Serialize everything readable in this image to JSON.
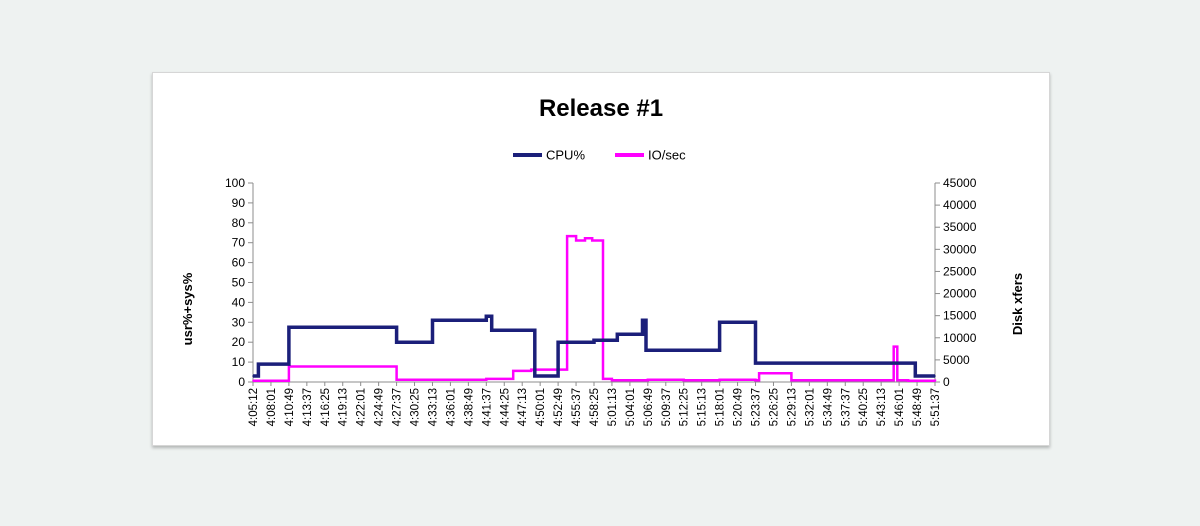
{
  "chart_data": {
    "type": "line",
    "title": "Release #1",
    "ylabel": "usr%+sys%",
    "y2label": "Disk xfers",
    "ylim": [
      0,
      100
    ],
    "yticks": [
      0,
      10,
      20,
      30,
      40,
      50,
      60,
      70,
      80,
      90,
      100
    ],
    "y2lim": [
      0,
      45000
    ],
    "y2ticks": [
      0,
      5000,
      10000,
      15000,
      20000,
      25000,
      30000,
      35000,
      40000,
      45000
    ],
    "legend_position": "top-center",
    "grid": false,
    "x_ticks": [
      "4:05:12",
      "4:08:01",
      "4:10:49",
      "4:13:37",
      "4:16:25",
      "4:19:13",
      "4:22:01",
      "4:24:49",
      "4:27:37",
      "4:30:25",
      "4:33:13",
      "4:36:01",
      "4:38:49",
      "4:41:37",
      "4:44:25",
      "4:47:13",
      "4:50:01",
      "4:52:49",
      "4:55:37",
      "4:58:25",
      "5:01:13",
      "5:04:01",
      "5:06:49",
      "5:09:37",
      "5:12:25",
      "5:15:13",
      "5:18:01",
      "5:20:49",
      "5:23:37",
      "5:26:25",
      "5:29:13",
      "5:32:01",
      "5:34:49",
      "5:37:37",
      "5:40:25",
      "5:43:13",
      "5:46:01",
      "5:48:49",
      "5:51:37"
    ],
    "series": [
      {
        "name": "CPU%",
        "axis": "left",
        "color": "#1b1f7a",
        "x": [
          0,
          0.3,
          1.8,
          2.0,
          7.8,
          8.0,
          9.8,
          10.0,
          13.0,
          13.3,
          15.5,
          15.7,
          16.7,
          17.0,
          18.8,
          19.0,
          20.2,
          20.3,
          21.5,
          21.7,
          21.9,
          23.7,
          25.6,
          26.0,
          27.8,
          28.0,
          36.7,
          36.9,
          38.0
        ],
        "y": [
          3,
          9,
          9,
          27.5,
          27.5,
          20,
          20,
          31,
          33,
          26,
          26,
          3,
          3,
          20,
          20,
          21,
          21,
          24,
          24,
          31,
          16,
          16,
          16,
          30,
          30,
          9.5,
          9.5,
          3,
          3
        ]
      },
      {
        "name": "IO/sec",
        "axis": "right",
        "color": "#ff00ff",
        "x": [
          0,
          1.8,
          2.0,
          7.8,
          8.0,
          10.0,
          13.0,
          14.5,
          15.5,
          16.5,
          17.5,
          18.0,
          18.5,
          18.9,
          19.5,
          20.0,
          22.0,
          24.0,
          26.0,
          28.0,
          28.2,
          30.0,
          32.0,
          34.0,
          35.5,
          35.7,
          35.9,
          36.5,
          38.0
        ],
        "y": [
          300,
          300,
          3500,
          3500,
          500,
          500,
          700,
          2500,
          2800,
          2800,
          33000,
          32000,
          32500,
          32000,
          700,
          400,
          500,
          400,
          500,
          400,
          2000,
          400,
          400,
          400,
          400,
          8000,
          400,
          300,
          200
        ]
      }
    ]
  }
}
